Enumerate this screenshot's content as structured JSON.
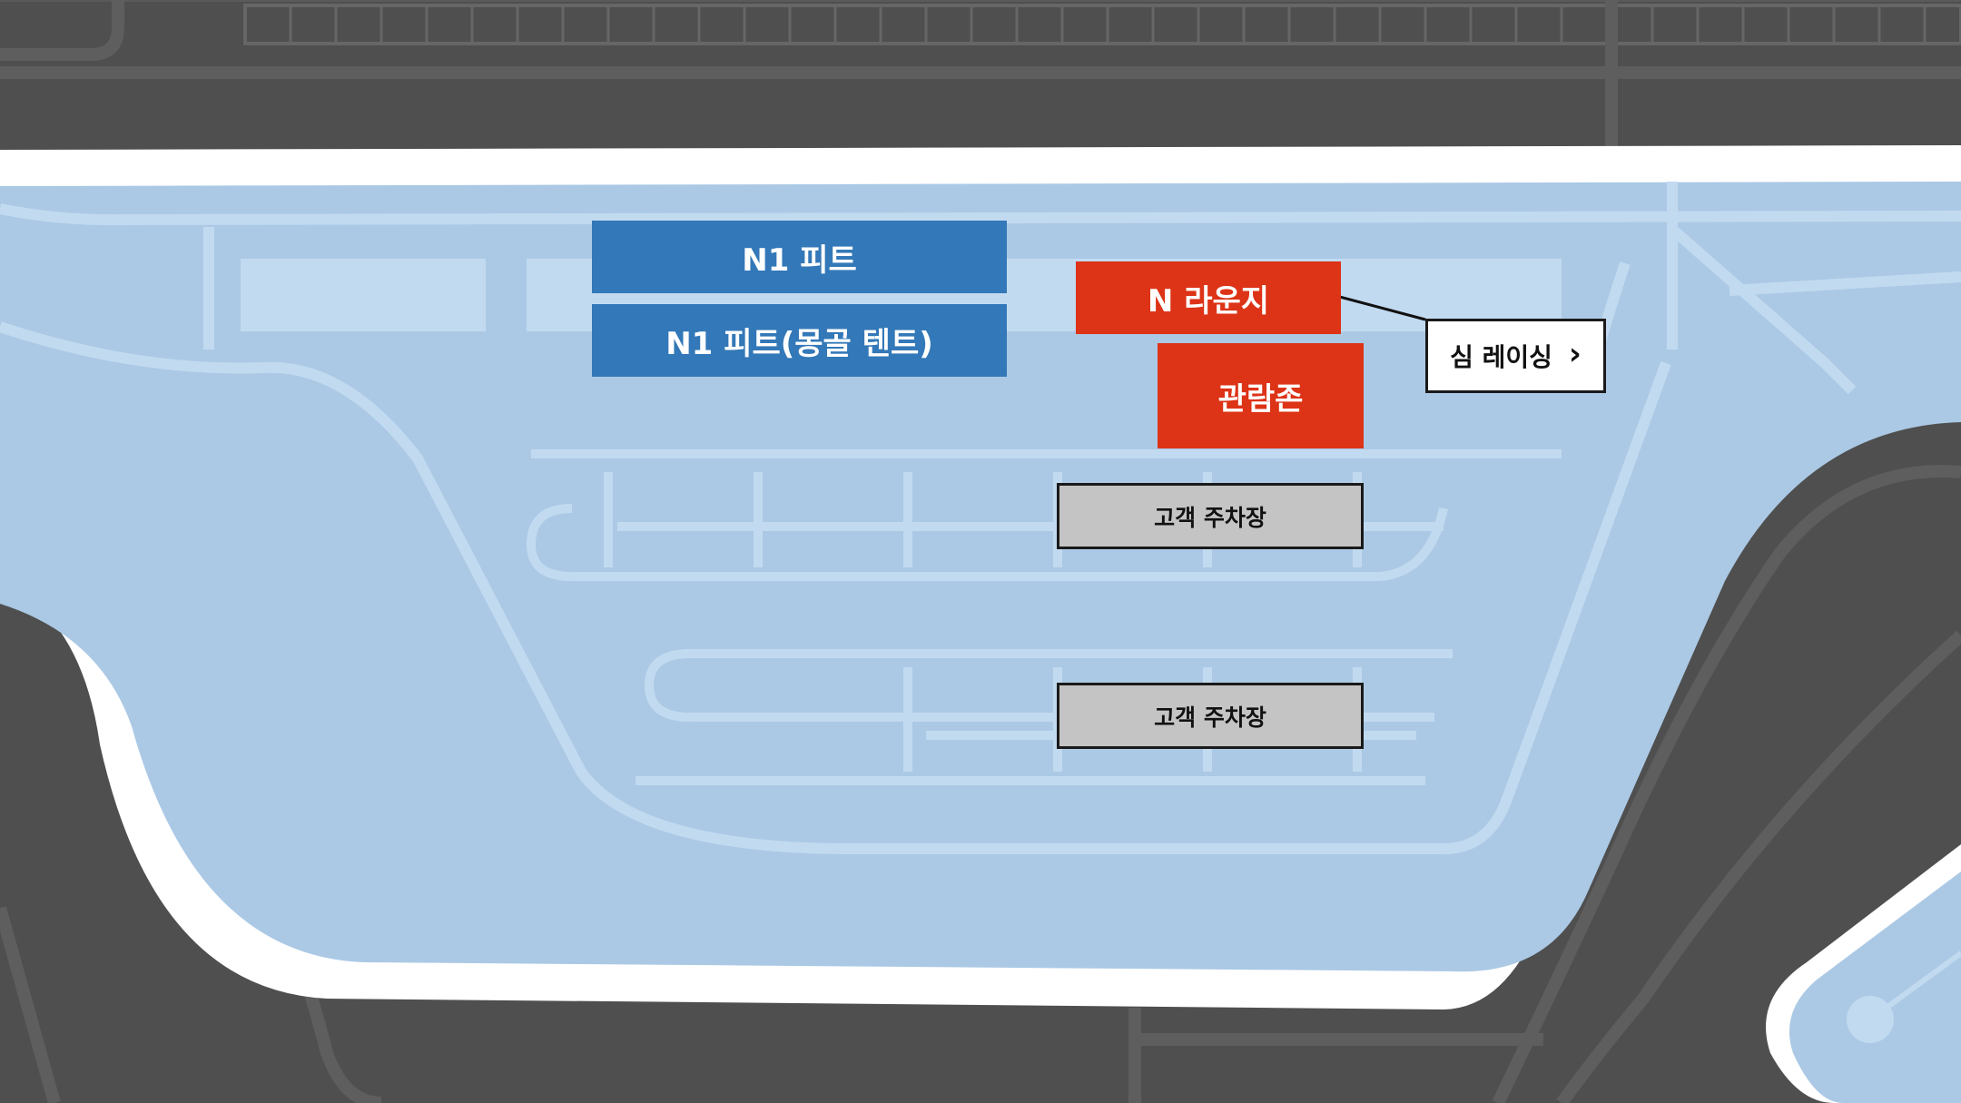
{
  "map": {
    "zones": {
      "n1_pit": "N1 피트",
      "n1_pit_tent": "N1 피트(몽골 텐트)",
      "n_lounge": "N 라운지",
      "spectator_zone": "관람존",
      "parking_1": "고객 주차장",
      "parking_2": "고객 주차장"
    },
    "callout": {
      "label": "심 레이싱",
      "icon": "chevron-right-icon"
    },
    "colors": {
      "background_dark": "#4f4f4f",
      "road_gray": "#606060",
      "venue_light_blue": "#abc9e5",
      "venue_lines": "#c2daf0",
      "track_white": "#ffffff",
      "pit_blue": "#3378b8",
      "highlight_red": "#dd3316",
      "parking_gray": "#c4c4c4"
    }
  }
}
